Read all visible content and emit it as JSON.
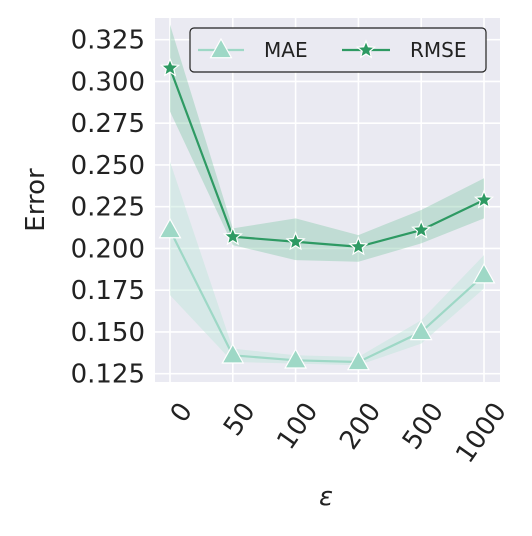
{
  "chart_data": {
    "type": "line",
    "title": "",
    "xlabel": "ε",
    "ylabel": "Error",
    "categories": [
      "0",
      "50",
      "100",
      "200",
      "500",
      "1000"
    ],
    "ylim": [
      0.12,
      0.338
    ],
    "yticks": [
      0.125,
      0.15,
      0.175,
      0.2,
      0.225,
      0.25,
      0.275,
      0.3,
      0.325
    ],
    "ytick_labels": [
      "0.125",
      "0.150",
      "0.175",
      "0.200",
      "0.225",
      "0.250",
      "0.275",
      "0.300",
      "0.325"
    ],
    "grid": true,
    "background_color": "#eaeaf2",
    "legend": {
      "position": "top-right",
      "entries": [
        "MAE",
        "RMSE"
      ]
    },
    "series": [
      {
        "name": "MAE",
        "marker": "triangle",
        "color": "#9ed8c6",
        "band_color": "#bfe6d9",
        "values": [
          0.211,
          0.136,
          0.133,
          0.132,
          0.15,
          0.184
        ],
        "lower": [
          0.172,
          0.132,
          0.131,
          0.13,
          0.143,
          0.176
        ],
        "upper": [
          0.252,
          0.14,
          0.136,
          0.135,
          0.157,
          0.196
        ]
      },
      {
        "name": "RMSE",
        "marker": "star",
        "color": "#2e9a63",
        "band_color": "#8fcdaf",
        "values": [
          0.308,
          0.207,
          0.204,
          0.201,
          0.211,
          0.229
        ],
        "lower": [
          0.282,
          0.202,
          0.193,
          0.192,
          0.203,
          0.218
        ],
        "upper": [
          0.334,
          0.212,
          0.218,
          0.208,
          0.223,
          0.242
        ]
      }
    ]
  }
}
